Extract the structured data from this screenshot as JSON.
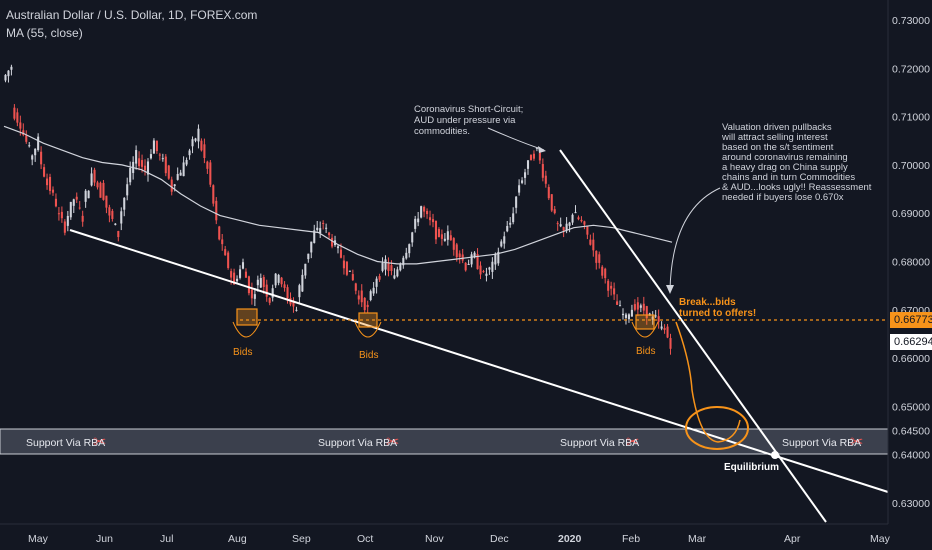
{
  "header": {
    "title": "Australian Dollar / U.S. Dollar, 1D, FOREX.com",
    "indicator": "MA (55, close)"
  },
  "price_tags": {
    "current": "0.66773",
    "last": "0.66294"
  },
  "colors": {
    "background": "#131722",
    "up": "#d1d4dc",
    "down": "#ef5350",
    "orange": "#f7931a",
    "trendline": "#ffffff",
    "ma": "#d1d4dc"
  },
  "chart_data": {
    "type": "candlestick",
    "x_labels": [
      "May",
      "Jun",
      "Jul",
      "Aug",
      "Sep",
      "Oct",
      "Nov",
      "Dec",
      "2020",
      "Feb",
      "Mar",
      "Apr",
      "May"
    ],
    "y_ticks": [
      "0.73000",
      "0.72000",
      "0.71000",
      "0.70000",
      "0.69000",
      "0.68000",
      "0.67000",
      "0.66000",
      "0.65000",
      "0.64500",
      "0.64000",
      "0.63000"
    ],
    "ylim": [
      0.627,
      0.733
    ],
    "zone_label": "Support Via RBA",
    "zone_range": [
      0.64,
      0.645
    ],
    "bid_label": "Bids",
    "annotations": [
      "Coronavirus Short-Circuit;",
      "AUD under pressure via",
      "commodities.",
      "Valuation driven pullbacks",
      "will attract selling interest",
      "based on the s/t sentiment",
      "around coronavirus remaining",
      "a heavy drag on China supply",
      "chains and in turn Commodities",
      "& AUD...looks ugly!! Reassessment",
      "needed if buyers lose 0.670x",
      "Break...bids",
      "turned to offers!",
      "Equilibrium"
    ],
    "price_path": [
      [
        0.7175,
        0.7205
      ],
      [
        0.7115,
        0.7085
      ],
      [
        0.708,
        0.703
      ],
      [
        0.701,
        0.705
      ],
      [
        0.7025,
        0.696
      ],
      [
        0.6965,
        0.692
      ],
      [
        0.6905,
        0.687
      ],
      [
        0.688,
        0.693
      ],
      [
        0.6935,
        0.689
      ],
      [
        0.692,
        0.6975
      ],
      [
        0.699,
        0.694
      ],
      [
        0.696,
        0.689
      ],
      [
        0.69,
        0.6855
      ],
      [
        0.688,
        0.696
      ],
      [
        0.6965,
        0.702
      ],
      [
        0.7015,
        0.699
      ],
      [
        0.699,
        0.705
      ],
      [
        0.704,
        0.7005
      ],
      [
        0.701,
        0.695
      ],
      [
        0.696,
        0.699
      ],
      [
        0.6985,
        0.703
      ],
      [
        0.703,
        0.707
      ],
      [
        0.7055,
        0.699
      ],
      [
        0.6995,
        0.688
      ],
      [
        0.687,
        0.6805
      ],
      [
        0.681,
        0.675
      ],
      [
        0.676,
        0.6795
      ],
      [
        0.679,
        0.672
      ],
      [
        0.673,
        0.677
      ],
      [
        0.6765,
        0.672
      ],
      [
        0.6735,
        0.678
      ],
      [
        0.6775,
        0.672
      ],
      [
        0.6725,
        0.67
      ],
      [
        0.672,
        0.68
      ],
      [
        0.68,
        0.686
      ],
      [
        0.6855,
        0.688
      ],
      [
        0.6875,
        0.684
      ],
      [
        0.6845,
        0.681
      ],
      [
        0.681,
        0.677
      ],
      [
        0.678,
        0.672
      ],
      [
        0.673,
        0.67
      ],
      [
        0.671,
        0.677
      ],
      [
        0.676,
        0.68
      ],
      [
        0.6795,
        0.6765
      ],
      [
        0.677,
        0.6815
      ],
      [
        0.681,
        0.686
      ],
      [
        0.686,
        0.6915
      ],
      [
        0.691,
        0.688
      ],
      [
        0.689,
        0.684
      ],
      [
        0.685,
        0.6855
      ],
      [
        0.6855,
        0.682
      ],
      [
        0.6825,
        0.679
      ],
      [
        0.6795,
        0.681
      ],
      [
        0.6805,
        0.677
      ],
      [
        0.677,
        0.679
      ],
      [
        0.679,
        0.684
      ],
      [
        0.6845,
        0.688
      ],
      [
        0.688,
        0.696
      ],
      [
        0.696,
        0.7
      ],
      [
        0.701,
        0.703
      ],
      [
        0.703,
        0.696
      ],
      [
        0.696,
        0.689
      ],
      [
        0.688,
        0.686
      ],
      [
        0.686,
        0.69
      ],
      [
        0.69,
        0.688
      ],
      [
        0.688,
        0.684
      ],
      [
        0.684,
        0.679
      ],
      [
        0.679,
        0.675
      ],
      [
        0.675,
        0.671
      ],
      [
        0.671,
        0.668
      ],
      [
        0.669,
        0.671
      ],
      [
        0.6705,
        0.67
      ],
      [
        0.67,
        0.668
      ],
      [
        0.669,
        0.666
      ],
      [
        0.667,
        0.663
      ]
    ],
    "ma_path": [
      0.708,
      0.7065,
      0.7045,
      0.703,
      0.7015,
      0.7005,
      0.7,
      0.699,
      0.697,
      0.694,
      0.6915,
      0.6895,
      0.6885,
      0.6875,
      0.687,
      0.6865,
      0.686,
      0.6835,
      0.6815,
      0.68,
      0.6795,
      0.6795,
      0.68,
      0.6805,
      0.681,
      0.6815,
      0.6825,
      0.684,
      0.6855,
      0.687,
      0.6875,
      0.687,
      0.686,
      0.685,
      0.684
    ]
  }
}
